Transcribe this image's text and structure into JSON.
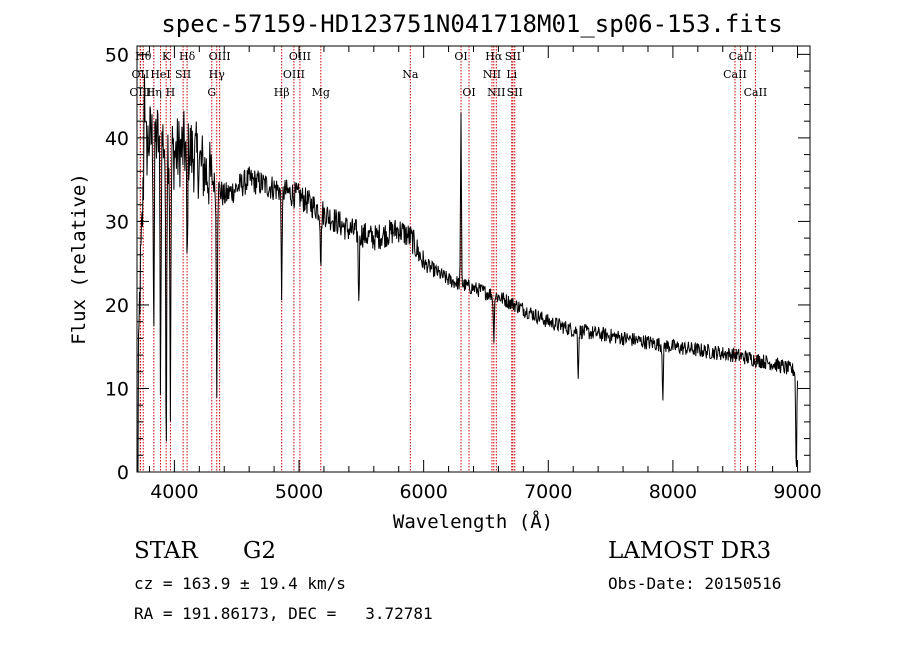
{
  "chart_data": {
    "type": "line",
    "title": "spec-57159-HD123751N041718M01_sp06-153.fits",
    "xlabel": "Wavelength (Å)",
    "ylabel": "Flux (relative)",
    "xlim": [
      3700,
      9100
    ],
    "ylim": [
      0,
      51
    ],
    "xticks": [
      4000,
      5000,
      6000,
      7000,
      8000,
      9000
    ],
    "yticks": [
      0,
      10,
      20,
      30,
      40,
      50
    ],
    "continuum": {
      "x": [
        3700,
        3720,
        3760,
        3800,
        3900,
        4000,
        4100,
        4200,
        4400,
        4600,
        4800,
        5000,
        5200,
        5400,
        5600,
        5800,
        5900,
        6000,
        6200,
        6400,
        6600,
        6800,
        7000,
        7200,
        7500,
        8000,
        8500,
        8800,
        9000
      ],
      "y": [
        0,
        20,
        38,
        40,
        40,
        38,
        39,
        37,
        33,
        35,
        34,
        33,
        31,
        29,
        28,
        29,
        28,
        25,
        23,
        22,
        21,
        19.5,
        18,
        17,
        16.3,
        15,
        14,
        13,
        12
      ]
    },
    "absorption_dips": [
      {
        "x": 3835,
        "depth": 22
      },
      {
        "x": 3889,
        "depth": 28
      },
      {
        "x": 3934,
        "depth": 35
      },
      {
        "x": 3968,
        "depth": 30
      },
      {
        "x": 4102,
        "depth": 15
      },
      {
        "x": 4340,
        "depth": 24
      },
      {
        "x": 4861,
        "depth": 12
      },
      {
        "x": 5175,
        "depth": 6
      },
      {
        "x": 5480,
        "depth": 8
      },
      {
        "x": 6563,
        "depth": 5
      },
      {
        "x": 7240,
        "depth": 5
      },
      {
        "x": 7920,
        "depth": 6
      },
      {
        "x": 8990,
        "depth": 12
      }
    ],
    "emission_peaks": [
      {
        "x": 3760,
        "height": 12
      },
      {
        "x": 6300,
        "height": 20
      }
    ],
    "line_markers": [
      {
        "x": 3750,
        "label": "Hθ",
        "row": 0
      },
      {
        "x": 3727,
        "label": "OII",
        "row": 1
      },
      {
        "x": 3727,
        "label": "OIII",
        "row": 2
      },
      {
        "x": 3835,
        "label": "Hη",
        "row": 2
      },
      {
        "x": 3889,
        "label": "HeI",
        "row": 1
      },
      {
        "x": 3934,
        "label": "K",
        "row": 0
      },
      {
        "x": 3968,
        "label": "H",
        "row": 2
      },
      {
        "x": 4070,
        "label": "SII",
        "row": 1
      },
      {
        "x": 4102,
        "label": "Hδ",
        "row": 0
      },
      {
        "x": 4300,
        "label": "G",
        "row": 2
      },
      {
        "x": 4340,
        "label": "Hγ",
        "row": 1
      },
      {
        "x": 4363,
        "label": "OIII",
        "row": 0
      },
      {
        "x": 4861,
        "label": "Hβ",
        "row": 2
      },
      {
        "x": 4959,
        "label": "OIII",
        "row": 1
      },
      {
        "x": 5007,
        "label": "OIII",
        "row": 0
      },
      {
        "x": 5175,
        "label": "Mg",
        "row": 2
      },
      {
        "x": 5893,
        "label": "Na",
        "row": 1
      },
      {
        "x": 6300,
        "label": "OI",
        "row": 0
      },
      {
        "x": 6364,
        "label": "OI",
        "row": 2
      },
      {
        "x": 6548,
        "label": "NII",
        "row": 1
      },
      {
        "x": 6563,
        "label": "Hα",
        "row": 0
      },
      {
        "x": 6583,
        "label": "NII",
        "row": 2
      },
      {
        "x": 6707,
        "label": "Li",
        "row": 1
      },
      {
        "x": 6716,
        "label": "SII",
        "row": 0
      },
      {
        "x": 6731,
        "label": "SII",
        "row": 2
      },
      {
        "x": 8498,
        "label": "CaII",
        "row": 1
      },
      {
        "x": 8542,
        "label": "CaII",
        "row": 0
      },
      {
        "x": 8662,
        "label": "CaII",
        "row": 2
      }
    ]
  },
  "info": {
    "object_class": "STAR",
    "subclass": "G2",
    "survey": "LAMOST DR3",
    "cz": "cz = 163.9 ± 19.4 km/s",
    "obs_date": "Obs-Date: 20150516",
    "coords": "RA = 191.86173, DEC =   3.72781"
  },
  "colors": {
    "line": "#000000",
    "marker": "#cc0000",
    "background": "#ffffff"
  }
}
